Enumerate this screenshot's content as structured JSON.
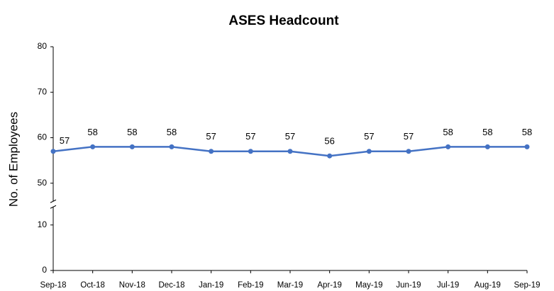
{
  "chart_data": {
    "type": "line",
    "title": "ASES Headcount",
    "ylabel": "No. of Employees",
    "categories": [
      "Sep-18",
      "Oct-18",
      "Nov-18",
      "Dec-18",
      "Jan-19",
      "Feb-19",
      "Mar-19",
      "Apr-19",
      "May-19",
      "Jun-19",
      "Jul-19",
      "Aug-19",
      "Sep-19"
    ],
    "series": [
      {
        "name": "Headcount",
        "color": "#4472c4",
        "values": [
          57,
          58,
          58,
          58,
          57,
          57,
          57,
          56,
          57,
          57,
          58,
          58,
          58
        ]
      }
    ],
    "ylim": [
      0,
      80
    ],
    "yticks": [
      0,
      10,
      50,
      60,
      70,
      80
    ],
    "axis_break": [
      10,
      50
    ],
    "grid": false
  }
}
